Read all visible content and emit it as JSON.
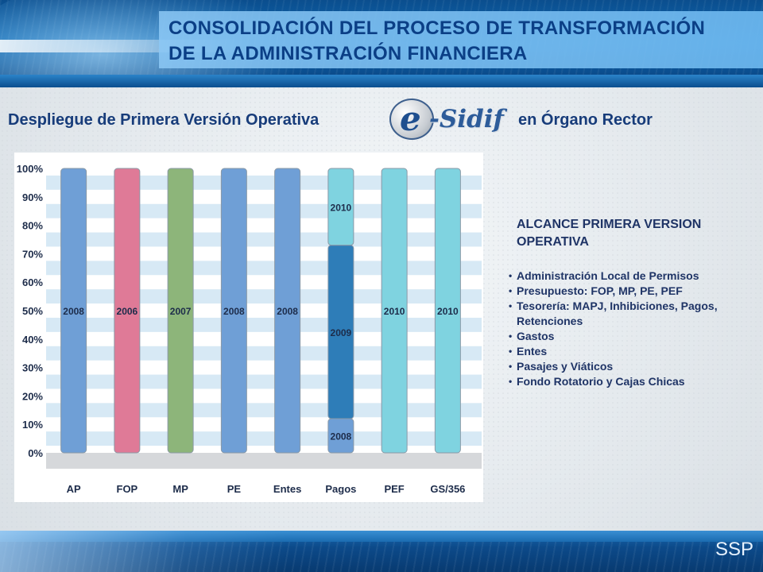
{
  "header": {
    "title_line1": "CONSOLIDACIÓN DEL PROCESO DE TRANSFORMACIÓN",
    "title_line2": "DE LA ADMINISTRACIÓN FINANCIERA"
  },
  "subtitle": {
    "before_logo": "Despliegue de Primera Versión Operativa",
    "logo_e": "e",
    "logo_word": "-Sidif",
    "after_logo": "en Órgano Rector"
  },
  "panel": {
    "heading_line1": "ALCANCE PRIMERA VERSION",
    "heading_line2": "OPERATIVA",
    "items": [
      "Administración Local de Permisos",
      "Presupuesto: FOP, MP, PE, PEF",
      "Tesorería: MAPJ, Inhibiciones, Pagos,",
      "Retenciones",
      "Gastos",
      "Entes",
      "Pasajes y Viáticos",
      "Fondo Rotatorio y Cajas Chicas"
    ]
  },
  "footer": {
    "org": "SSP"
  },
  "chart_data": {
    "type": "bar",
    "categories": [
      "AP",
      "FOP",
      "MP",
      "PE",
      "Entes",
      "Pagos",
      "PEF",
      "GS/356"
    ],
    "y_ticks": [
      "0%",
      "10%",
      "20%",
      "30%",
      "40%",
      "50%",
      "60%",
      "70%",
      "80%",
      "90%",
      "100%"
    ],
    "ylim": [
      0,
      100
    ],
    "segments": [
      [
        {
          "label": "2008",
          "from": 0,
          "to": 100,
          "color": "#6f9fd6"
        }
      ],
      [
        {
          "label": "2006",
          "from": 0,
          "to": 100,
          "color": "#df7a97"
        }
      ],
      [
        {
          "label": "2007",
          "from": 0,
          "to": 100,
          "color": "#8db57a"
        }
      ],
      [
        {
          "label": "2008",
          "from": 0,
          "to": 100,
          "color": "#6f9fd6"
        }
      ],
      [
        {
          "label": "2008",
          "from": 0,
          "to": 100,
          "color": "#6f9fd6"
        }
      ],
      [
        {
          "label": "2008",
          "from": 0,
          "to": 12,
          "color": "#6f9fd6"
        },
        {
          "label": "2009",
          "from": 12,
          "to": 73,
          "color": "#2e7db8"
        },
        {
          "label": "2010",
          "from": 73,
          "to": 100,
          "color": "#7fd3e0"
        }
      ],
      [
        {
          "label": "2010",
          "from": 0,
          "to": 100,
          "color": "#7fd3e0"
        }
      ],
      [
        {
          "label": "2010",
          "from": 0,
          "to": 100,
          "color": "#7fd3e0"
        }
      ]
    ],
    "grid": true
  }
}
